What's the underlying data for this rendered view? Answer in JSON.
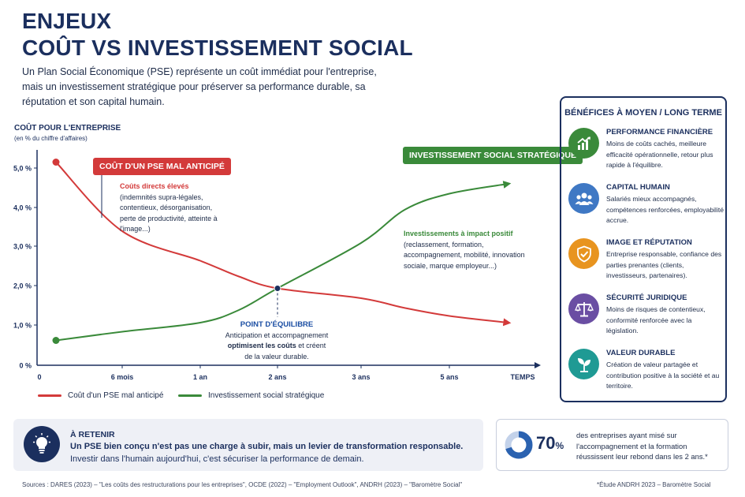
{
  "header": {
    "title_line1": "ENJEUX",
    "title_line2": "COÛT VS INVESTISSEMENT SOCIAL",
    "intro": "Un Plan Social Économique (PSE) représente un coût immédiat pour l'entreprise, mais un investissement stratégique pour préserver sa performance durable, sa réputation et son capital humain."
  },
  "chart_data": {
    "type": "line",
    "ylabel": "COÛT POUR L'ENTREPRISE",
    "ylabel_sub": "(en % du chiffre d'affaires)",
    "yticks": [
      "0 %",
      "1,0 %",
      "2,0 %",
      "3,0 %",
      "4,0 %",
      "5,0 %"
    ],
    "ylim": [
      0,
      5.5
    ],
    "xticks": [
      "0",
      "6 mois",
      "1 an",
      "2 ans",
      "3 ans",
      "5 ans",
      "TEMPS"
    ],
    "x": [
      0.1,
      0.5,
      1.0,
      1.5,
      2.0,
      3.0,
      4.0,
      5.0,
      5.8
    ],
    "series": [
      {
        "name": "Coût d'un PSE mal anticipé",
        "color": "#d33a3a",
        "values": [
          5.15,
          3.4,
          2.65,
          2.25,
          1.95,
          1.7,
          1.45,
          1.25,
          1.08
        ]
      },
      {
        "name": "Investissement social stratégique",
        "color": "#3a8a3a",
        "values": [
          0.63,
          0.85,
          1.08,
          1.4,
          1.95,
          3.1,
          3.95,
          4.35,
          4.6
        ]
      }
    ],
    "equilibrium": {
      "x": 2.0,
      "y": 1.95
    },
    "annotations": {
      "red_tag": "COÛT D'UN PSE MAL ANTICIPÉ",
      "green_tag": "INVESTISSEMENT SOCIAL STRATÉGIQUE",
      "direct_head": "Coûts directs élevés",
      "direct_body": "(indemnités supra-légales, contentieux, désorganisation, perte de productivité, atteinte à l'image...)",
      "impact_head": "Investissements à impact positif",
      "impact_body": "(reclassement, formation, accompagnement, mobilité, innovation sociale, marque employeur...)",
      "eq_head": "POINT D'ÉQUILIBRE",
      "eq_line1": "Anticipation et accompagnement",
      "eq_line2_bold": "optimisent les coûts",
      "eq_line2_rest": " et créent",
      "eq_line3": "de la valeur durable."
    },
    "legend_position": "bottom-left",
    "grid": false
  },
  "benefits": {
    "title": "BÉNÉFICES À MOYEN / LONG TERME",
    "items": [
      {
        "title": "PERFORMANCE FINANCIÈRE",
        "text": "Moins de coûts cachés, meilleure efficacité opérationnelle, retour plus rapide à l'équilibre.",
        "icon": "chart-up-icon",
        "color": "#3a8a3a"
      },
      {
        "title": "CAPITAL HUMAIN",
        "text": "Salariés mieux accompagnés, compétences renforcées, employabilité accrue.",
        "icon": "people-icon",
        "color": "#3f78c4"
      },
      {
        "title": "IMAGE ET RÉPUTATION",
        "text": "Entreprise responsable, confiance des parties prenantes (clients, investisseurs, partenaires).",
        "icon": "shield-check-icon",
        "color": "#e8941f"
      },
      {
        "title": "SÉCURITÉ JURIDIQUE",
        "text": "Moins de risques de contentieux, conformité renforcée avec la législation.",
        "icon": "scales-icon",
        "color": "#6a4ea3"
      },
      {
        "title": "VALEUR DURABLE",
        "text": "Création de valeur partagée et contribution positive à la société et au territoire.",
        "icon": "leaf-icon",
        "color": "#1f9a94"
      }
    ]
  },
  "retain": {
    "title": "À RETENIR",
    "line1": "Un PSE bien conçu n'est pas une charge à subir, mais un levier de transformation responsable.",
    "line2": "Investir dans l'humain aujourd'hui, c'est sécuriser la performance de demain.",
    "icon": "lightbulb-icon"
  },
  "stat": {
    "value": "70",
    "unit": "%",
    "fraction": 0.7,
    "text": "des entreprises ayant misé sur l'accompagnement et la formation réussissent leur rebond dans les 2 ans.*"
  },
  "footer": {
    "sources": "Sources : DARES (2023) – \"Les coûts des restructurations pour les entreprises\", OCDE (2022) – \"Employment Outlook\", ANDRH (2023) – \"Baromètre Social\"",
    "note": "*Étude ANDRH 2023 – Baromètre Social"
  }
}
